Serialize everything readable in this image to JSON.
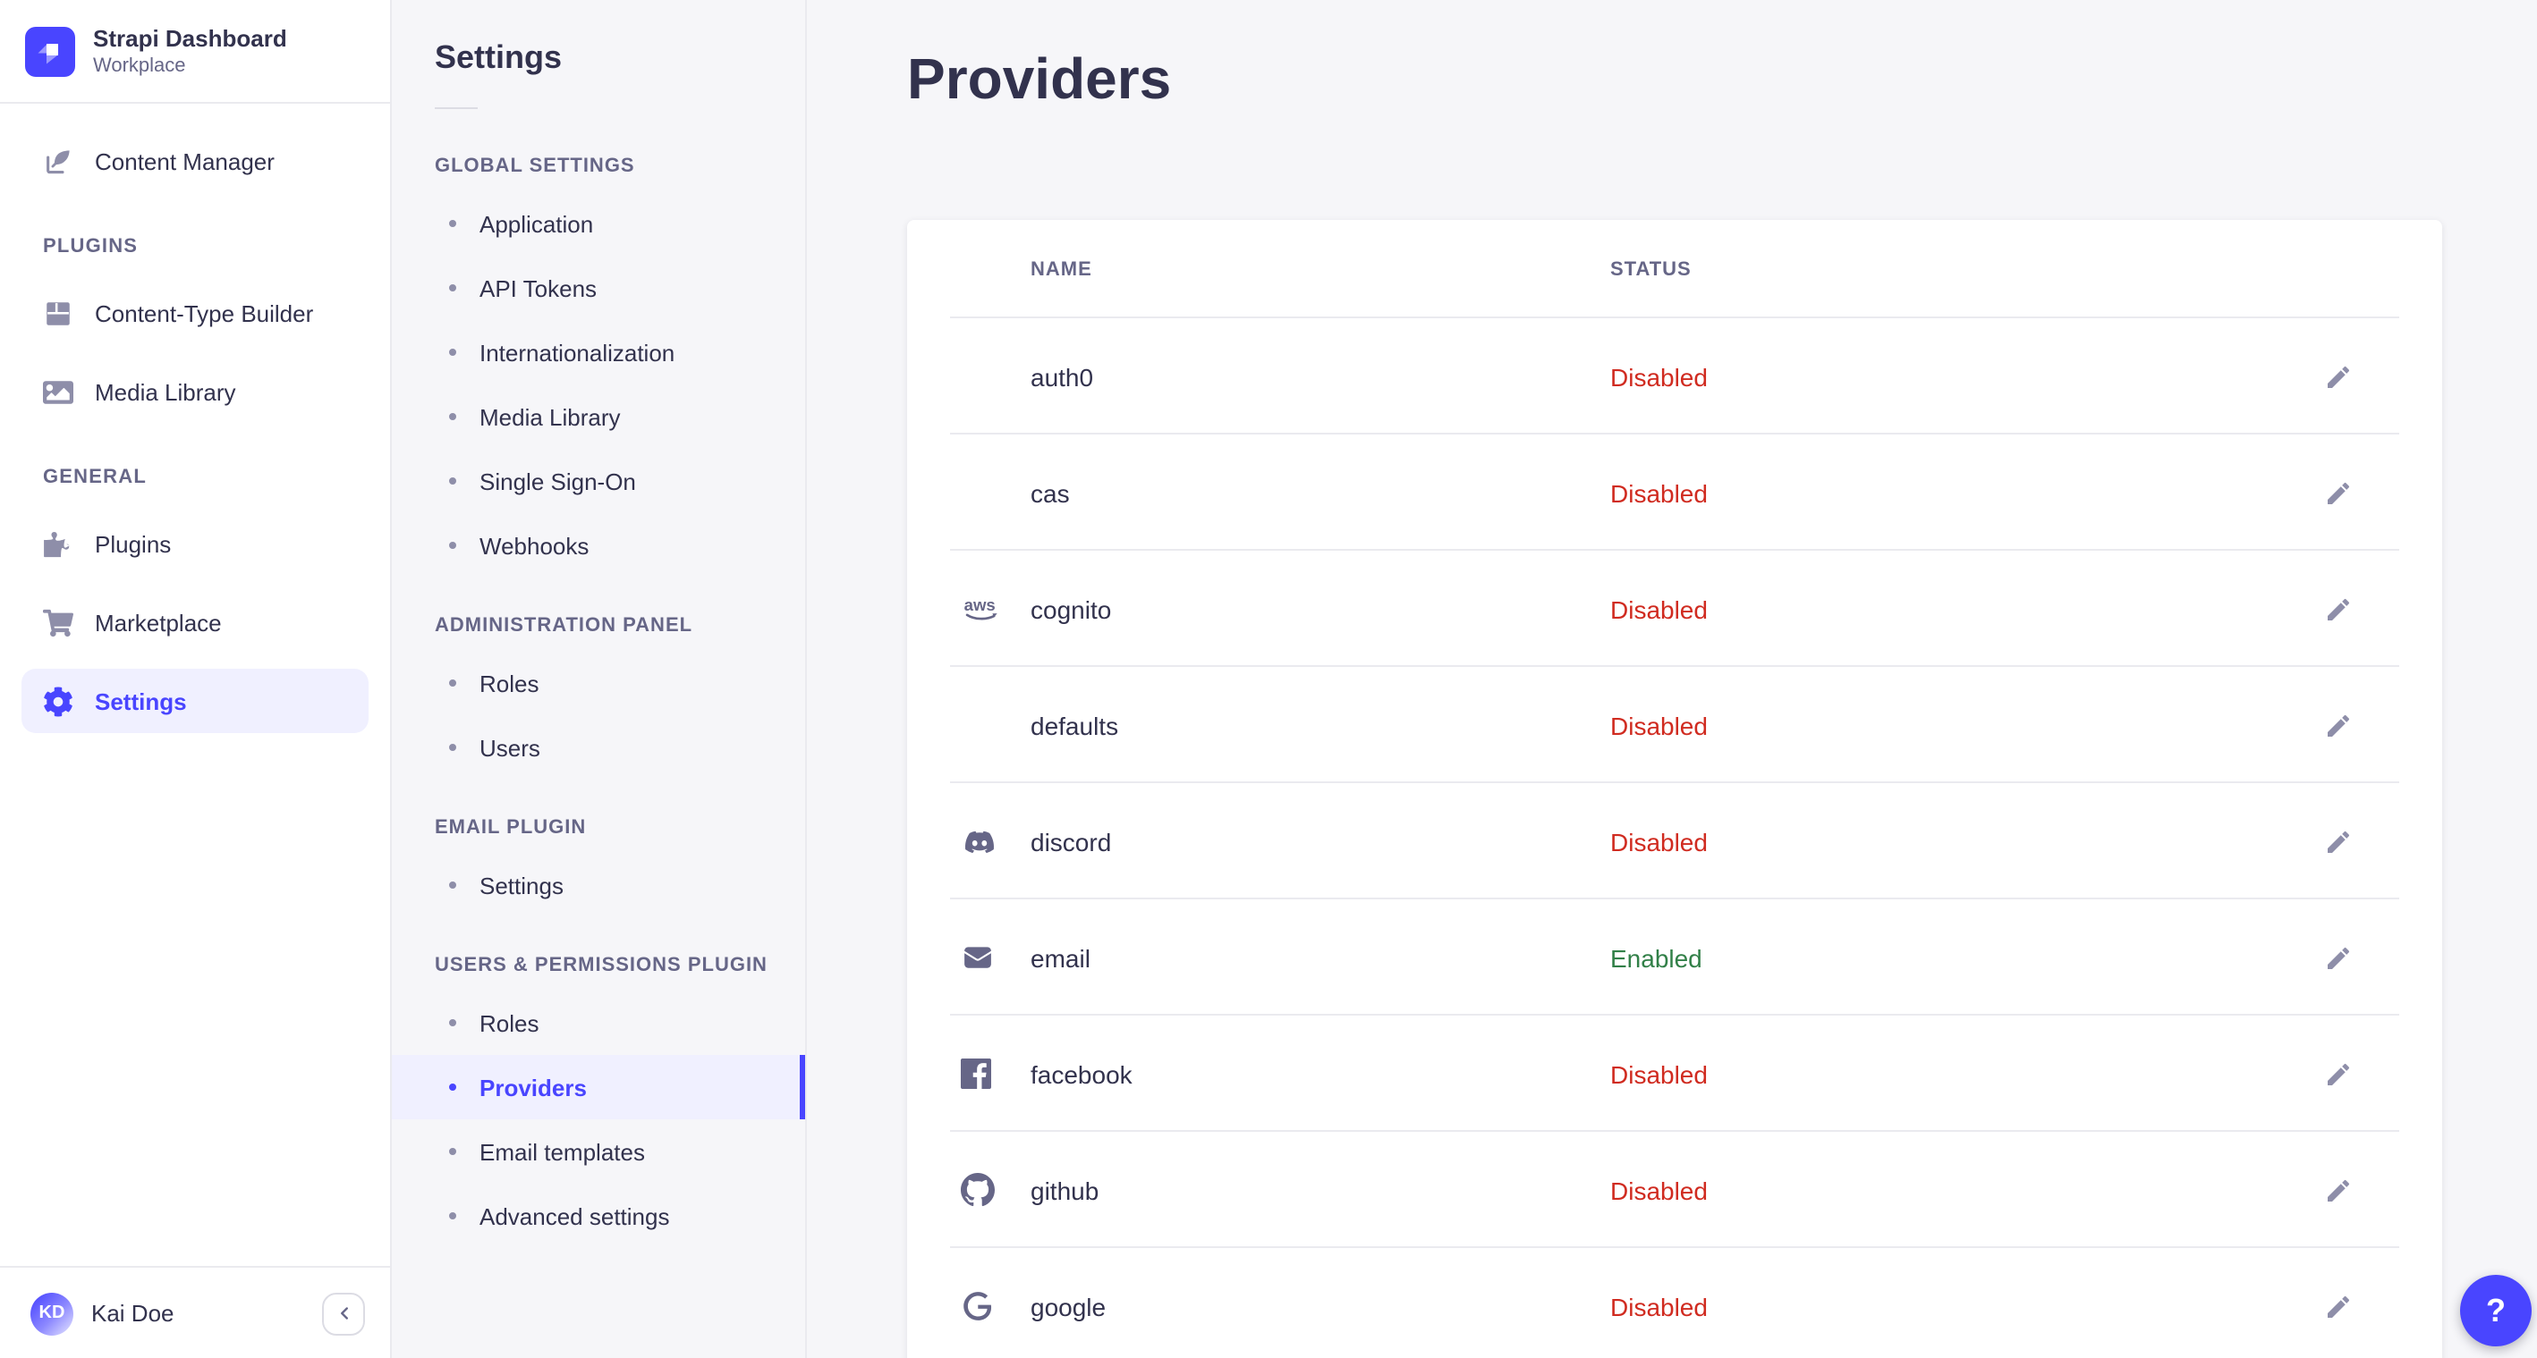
{
  "app": {
    "name": "Strapi Dashboard",
    "workspace": "Workplace",
    "user": {
      "name": "Kai Doe",
      "initials": "KD"
    }
  },
  "colors": {
    "primary": "#4945ff",
    "primary_bg": "#f0f0ff",
    "enabled": "#328048",
    "disabled": "#d02b20"
  },
  "main_nav": {
    "sections": [
      {
        "label": "",
        "items": [
          {
            "label": "Content Manager",
            "icon": "content-manager-icon",
            "active": false
          }
        ]
      },
      {
        "label": "PLUGINS",
        "items": [
          {
            "label": "Content-Type Builder",
            "icon": "content-type-builder-icon",
            "active": false
          },
          {
            "label": "Media Library",
            "icon": "media-library-icon",
            "active": false
          }
        ]
      },
      {
        "label": "GENERAL",
        "items": [
          {
            "label": "Plugins",
            "icon": "puzzle-icon",
            "active": false
          },
          {
            "label": "Marketplace",
            "icon": "cart-icon",
            "active": false
          },
          {
            "label": "Settings",
            "icon": "gear-icon",
            "active": true
          }
        ]
      }
    ]
  },
  "settings_nav": {
    "title": "Settings",
    "sections": [
      {
        "label": "GLOBAL SETTINGS",
        "items": [
          "Application",
          "API Tokens",
          "Internationalization",
          "Media Library",
          "Single Sign-On",
          "Webhooks"
        ]
      },
      {
        "label": "ADMINISTRATION PANEL",
        "items": [
          "Roles",
          "Users"
        ]
      },
      {
        "label": "EMAIL PLUGIN",
        "items": [
          "Settings"
        ]
      },
      {
        "label": "USERS & PERMISSIONS PLUGIN",
        "items": [
          "Roles",
          "Providers",
          "Email templates",
          "Advanced settings"
        ]
      }
    ],
    "active_item": "Providers"
  },
  "content": {
    "title": "Providers",
    "table": {
      "columns": [
        "NAME",
        "STATUS"
      ],
      "rows": [
        {
          "name": "auth0",
          "icon": null,
          "status": "Disabled"
        },
        {
          "name": "cas",
          "icon": null,
          "status": "Disabled"
        },
        {
          "name": "cognito",
          "icon": "aws-icon",
          "status": "Disabled"
        },
        {
          "name": "defaults",
          "icon": null,
          "status": "Disabled"
        },
        {
          "name": "discord",
          "icon": "discord-icon",
          "status": "Disabled"
        },
        {
          "name": "email",
          "icon": "email-icon",
          "status": "Enabled"
        },
        {
          "name": "facebook",
          "icon": "facebook-icon",
          "status": "Disabled"
        },
        {
          "name": "github",
          "icon": "github-icon",
          "status": "Disabled"
        },
        {
          "name": "google",
          "icon": "google-icon",
          "status": "Disabled"
        }
      ]
    }
  },
  "help_button": {
    "label": "?"
  }
}
